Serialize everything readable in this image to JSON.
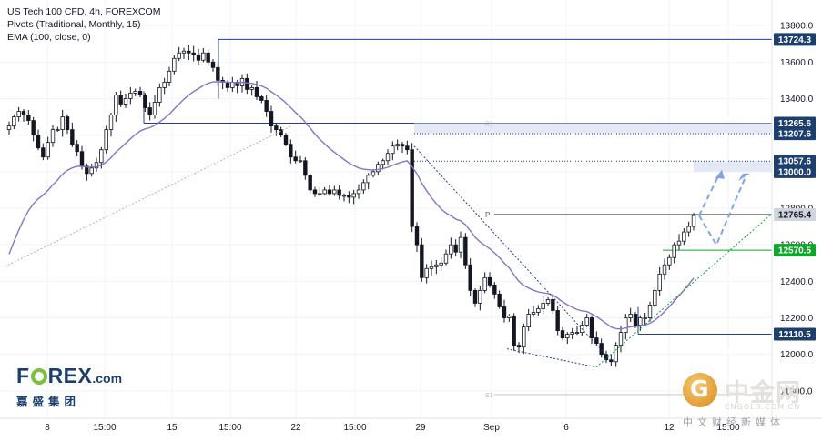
{
  "legend": {
    "symbol": "US Tech 100 CFD, 4h, FOREXCOM",
    "pivots": "Pivots (Traditional, Monthly, 15)",
    "ema": "EMA (100, close, 0)"
  },
  "chart_data": {
    "type": "candlestick",
    "y_axis": {
      "range": [
        11650,
        13930
      ],
      "ticks": [
        11800,
        12000,
        12200,
        12400,
        12600,
        12800,
        13000,
        13200,
        13400,
        13600,
        13800
      ]
    },
    "x_ticks": [
      "8",
      "15:00",
      "15",
      "15:00",
      "22",
      "15:00",
      "29",
      "Sep",
      "6",
      "12",
      "15:00"
    ],
    "price_labels": [
      {
        "value": "13724.3",
        "style": "navy"
      },
      {
        "value": "13265.6",
        "style": "navy"
      },
      {
        "value": "13207.6",
        "style": "navy"
      },
      {
        "value": "13057.6",
        "style": "navy"
      },
      {
        "value": "13000.0",
        "style": "navy"
      },
      {
        "value": "12765.4",
        "style": "grey"
      },
      {
        "value": "12570.5",
        "style": "green"
      },
      {
        "value": "12110.5",
        "style": "navy"
      }
    ],
    "pivot_letters": {
      "p": "P",
      "s1": "S1",
      "r1": "R1"
    },
    "candles_close": [
      13250,
      13300,
      13330,
      13310,
      13280,
      13200,
      13130,
      13080,
      13160,
      13230,
      13230,
      13300,
      13230,
      13150,
      13110,
      13030,
      12990,
      13020,
      13050,
      13120,
      13230,
      13310,
      13420,
      13370,
      13400,
      13430,
      13440,
      13420,
      13350,
      13310,
      13380,
      13460,
      13490,
      13550,
      13620,
      13650,
      13660,
      13650,
      13640,
      13610,
      13650,
      13600,
      13570,
      13500,
      13490,
      13460,
      13490,
      13470,
      13510,
      13450,
      13460,
      13410,
      13390,
      13330,
      13250,
      13230,
      13200,
      13150,
      13080,
      13060,
      13060,
      12980,
      12900,
      12880,
      12880,
      12900,
      12880,
      12900,
      12870,
      12870,
      12860,
      12880,
      12900,
      12940,
      12980,
      13000,
      13040,
      13060,
      13100,
      13140,
      13150,
      13140,
      13120,
      12700,
      12600,
      12420,
      12470,
      12480,
      12490,
      12500,
      12550,
      12600,
      12560,
      12640,
      12490,
      12350,
      12280,
      12350,
      12420,
      12380,
      12330,
      12260,
      12200,
      12210,
      12050,
      12040,
      12150,
      12220,
      12230,
      12250,
      12280,
      12300,
      12240,
      12130,
      12090,
      12110,
      12120,
      12120,
      12160,
      12200,
      12090,
      12060,
      12000,
      11970,
      11960,
      12050,
      12120,
      12200,
      12220,
      12160,
      12200,
      12200,
      12270,
      12350,
      12440,
      12490,
      12530,
      12600,
      12620,
      12670,
      12700,
      12760
    ]
  },
  "watermark_left": {
    "word_f": "F",
    "word_rest": "REX",
    "word_dot": ".com",
    "sub": "嘉盛集团"
  },
  "watermark_right": {
    "cn": "中金网",
    "coin": "G",
    "url": "CNGOLD.COM.CN",
    "sub": "中文财经新媒体"
  },
  "colors": {
    "candle": "#131722",
    "pivot_line": "#233f94",
    "pivot_p": "#1e1e1e",
    "pivot_green": "#0fa52a",
    "ema": "#8a72c9",
    "forecast": "#7fa3ea"
  }
}
